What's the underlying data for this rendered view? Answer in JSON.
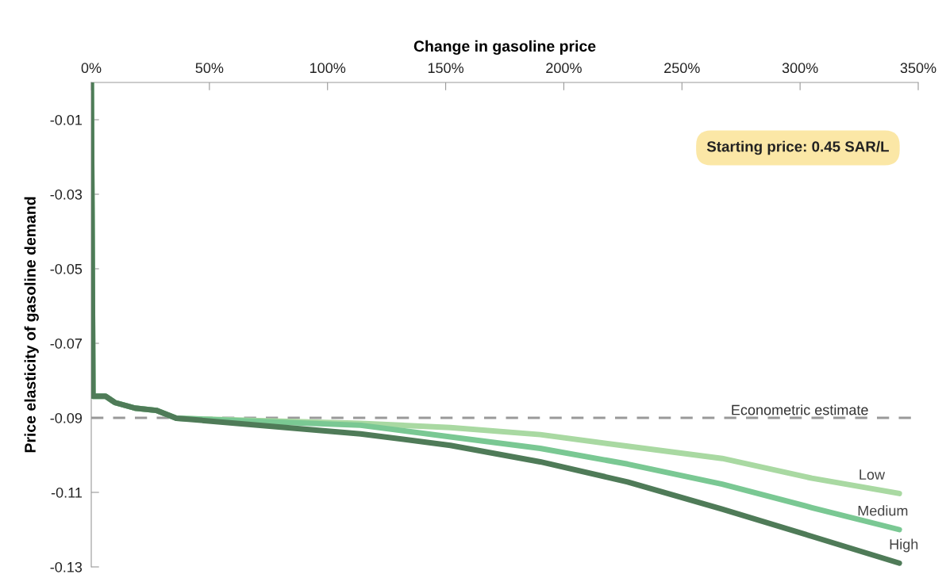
{
  "chart_data": {
    "type": "line",
    "xlabel": "Change in gasoline price",
    "ylabel": "Price elasticity of gasoline demand",
    "x": [
      0,
      0.7,
      6,
      10,
      18.5,
      27.5,
      36,
      114,
      152,
      190,
      227,
      267,
      305,
      342
    ],
    "series": [
      {
        "name": "Low",
        "color": "#a9d9a2",
        "values": [
          0,
          -0.0842,
          -0.0842,
          -0.0859,
          -0.0874,
          -0.088,
          -0.0901,
          -0.0915,
          -0.0926,
          -0.0945,
          -0.0976,
          -0.1009,
          -0.1062,
          -0.1103
        ]
      },
      {
        "name": "Medium",
        "color": "#7ac893",
        "values": [
          0,
          -0.0842,
          -0.0842,
          -0.0859,
          -0.0874,
          -0.088,
          -0.0901,
          -0.092,
          -0.0951,
          -0.0982,
          -0.1024,
          -0.1078,
          -0.1141,
          -0.12
        ]
      },
      {
        "name": "High",
        "color": "#4f7b58",
        "values": [
          0,
          -0.0842,
          -0.0842,
          -0.0859,
          -0.0874,
          -0.088,
          -0.0901,
          -0.0943,
          -0.0974,
          -0.1018,
          -0.1072,
          -0.1145,
          -0.1218,
          -0.129
        ]
      }
    ],
    "xlim": [
      0,
      350
    ],
    "xticks": [
      {
        "value": 0,
        "label": "0%"
      },
      {
        "value": 50,
        "label": "50%"
      },
      {
        "value": 100,
        "label": "100%"
      },
      {
        "value": 150,
        "label": "150%"
      },
      {
        "value": 200,
        "label": "200%"
      },
      {
        "value": 250,
        "label": "250%"
      },
      {
        "value": 300,
        "label": "300%"
      },
      {
        "value": 350,
        "label": "350%"
      }
    ],
    "ylim": [
      -0.13,
      0
    ],
    "yticks": [
      -0.01,
      -0.03,
      -0.05,
      -0.07,
      -0.09,
      -0.11,
      -0.13
    ],
    "ref_lines": [
      {
        "axis": "y",
        "value": -0.09,
        "label": "Econometric estimate",
        "color": "#999999",
        "line_style": "dashed"
      }
    ],
    "annotations": [
      "Starting price: 0.45 SAR/L"
    ],
    "grid": false,
    "legend": false,
    "marker": "none",
    "line_style": "solid"
  }
}
